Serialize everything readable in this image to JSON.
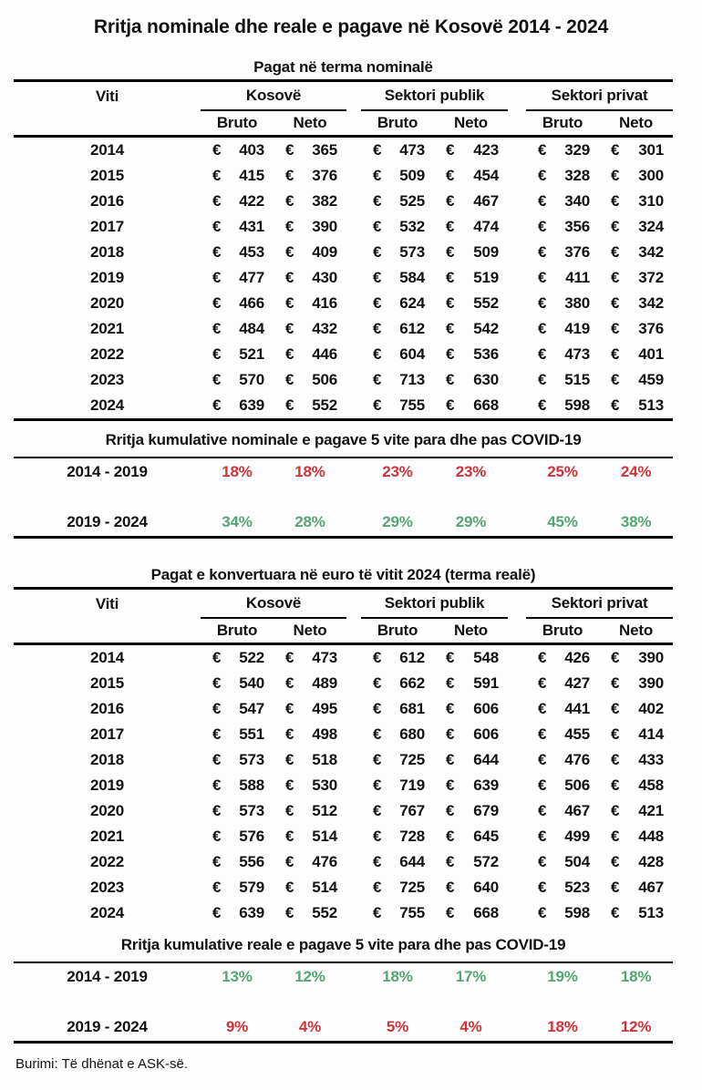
{
  "page_title": "Rritja nominale dhe reale e pagave në Kosovë 2014 - 2024",
  "footer_note": "Burimi: Të dhënat e ASK-së.",
  "columns": {
    "year_header": "Viti",
    "groups": [
      "Kosovë",
      "Sektori publik",
      "Sektori privat"
    ],
    "subheaders": [
      "Bruto",
      "Neto"
    ],
    "currency_symbol": "€"
  },
  "colors": {
    "red": "#cd3339",
    "green": "#55a376",
    "text": "#121212"
  },
  "chart_data": [
    {
      "id": "nominal_wages",
      "type": "table",
      "title": "Pagat në terma nominalë",
      "year_column": "Viti",
      "column_groups": [
        "Kosovë",
        "Sektori publik",
        "Sektori privat"
      ],
      "subcolumns": [
        "Bruto",
        "Neto"
      ],
      "currency": "€",
      "rows": [
        {
          "year": "2014",
          "values": [
            403,
            365,
            473,
            423,
            329,
            301
          ]
        },
        {
          "year": "2015",
          "values": [
            415,
            376,
            509,
            454,
            328,
            300
          ]
        },
        {
          "year": "2016",
          "values": [
            422,
            382,
            525,
            467,
            340,
            310
          ]
        },
        {
          "year": "2017",
          "values": [
            431,
            390,
            532,
            474,
            356,
            324
          ]
        },
        {
          "year": "2018",
          "values": [
            453,
            409,
            573,
            509,
            376,
            342
          ]
        },
        {
          "year": "2019",
          "values": [
            477,
            430,
            584,
            519,
            411,
            372
          ]
        },
        {
          "year": "2020",
          "values": [
            466,
            416,
            624,
            552,
            380,
            342
          ]
        },
        {
          "year": "2021",
          "values": [
            484,
            432,
            612,
            542,
            419,
            376
          ]
        },
        {
          "year": "2022",
          "values": [
            521,
            446,
            604,
            536,
            473,
            401
          ]
        },
        {
          "year": "2023",
          "values": [
            570,
            506,
            713,
            630,
            515,
            459
          ]
        },
        {
          "year": "2024",
          "values": [
            639,
            552,
            755,
            668,
            598,
            513
          ]
        }
      ]
    },
    {
      "id": "nominal_growth",
      "type": "table",
      "title": "Rritja kumulative nominale e pagave 5 vite para dhe pas COVID-19",
      "rows": [
        {
          "label": "2014 - 2019",
          "color": "red",
          "values": [
            "18%",
            "18%",
            "23%",
            "23%",
            "25%",
            "24%"
          ]
        },
        {
          "label": "2019 - 2024",
          "color": "green",
          "values": [
            "34%",
            "28%",
            "29%",
            "29%",
            "45%",
            "38%"
          ]
        }
      ]
    },
    {
      "id": "real_wages",
      "type": "table",
      "title": "Pagat e konvertuara në euro të vitit 2024 (terma realë)",
      "year_column": "Viti",
      "column_groups": [
        "Kosovë",
        "Sektori publik",
        "Sektori privat"
      ],
      "subcolumns": [
        "Bruto",
        "Neto"
      ],
      "currency": "€",
      "rows": [
        {
          "year": "2014",
          "values": [
            522,
            473,
            612,
            548,
            426,
            390
          ]
        },
        {
          "year": "2015",
          "values": [
            540,
            489,
            662,
            591,
            427,
            390
          ]
        },
        {
          "year": "2016",
          "values": [
            547,
            495,
            681,
            606,
            441,
            402
          ]
        },
        {
          "year": "2017",
          "values": [
            551,
            498,
            680,
            606,
            455,
            414
          ]
        },
        {
          "year": "2018",
          "values": [
            573,
            518,
            725,
            644,
            476,
            433
          ]
        },
        {
          "year": "2019",
          "values": [
            588,
            530,
            719,
            639,
            506,
            458
          ]
        },
        {
          "year": "2020",
          "values": [
            573,
            512,
            767,
            679,
            467,
            421
          ]
        },
        {
          "year": "2021",
          "values": [
            576,
            514,
            728,
            645,
            499,
            448
          ]
        },
        {
          "year": "2022",
          "values": [
            556,
            476,
            644,
            572,
            504,
            428
          ]
        },
        {
          "year": "2023",
          "values": [
            579,
            514,
            725,
            640,
            523,
            467
          ]
        },
        {
          "year": "2024",
          "values": [
            639,
            552,
            755,
            668,
            598,
            513
          ]
        }
      ]
    },
    {
      "id": "real_growth",
      "type": "table",
      "title": "Rritja kumulative reale e pagave 5 vite para dhe pas COVID-19",
      "rows": [
        {
          "label": "2014 - 2019",
          "color": "green",
          "values": [
            "13%",
            "12%",
            "18%",
            "17%",
            "19%",
            "18%"
          ]
        },
        {
          "label": "2019 - 2024",
          "color": "red",
          "values": [
            "9%",
            "4%",
            "5%",
            "4%",
            "18%",
            "12%"
          ]
        }
      ]
    }
  ]
}
